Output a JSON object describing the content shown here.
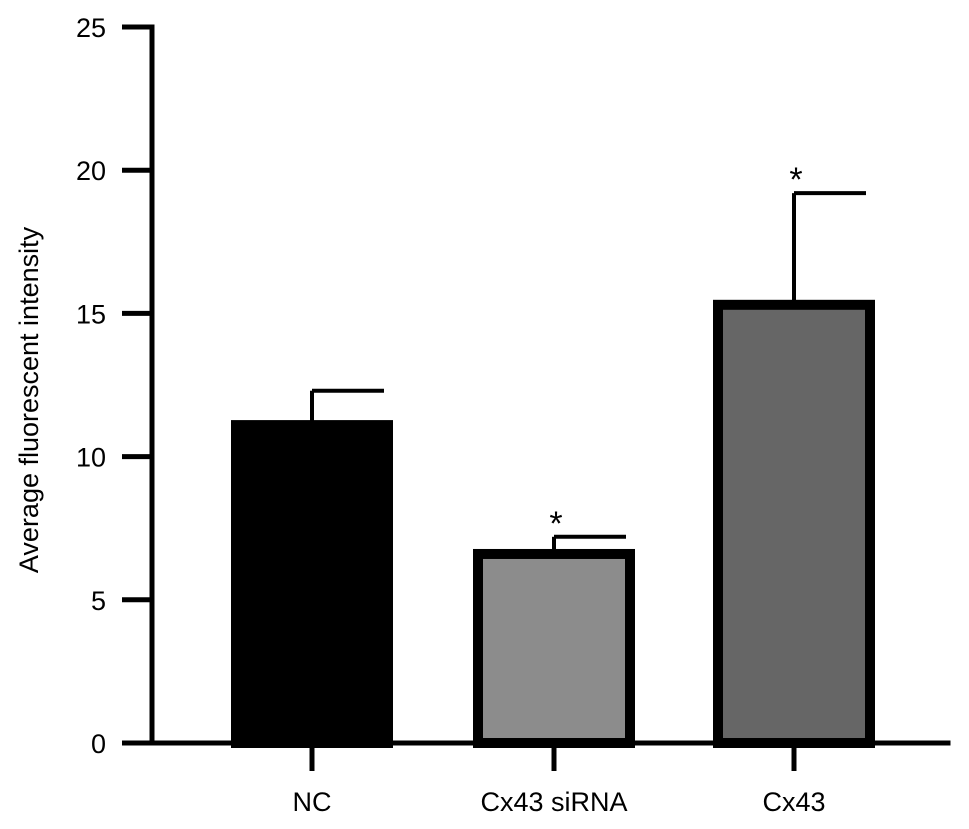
{
  "chart_data": {
    "type": "bar",
    "title": "",
    "xlabel": "",
    "ylabel": "Average fluorescent intensity",
    "ylim": [
      0,
      25
    ],
    "yticks": [
      0,
      5,
      10,
      15,
      20,
      25
    ],
    "categories": [
      "NC",
      "Cx43 siRNA",
      "Cx43"
    ],
    "values": [
      11.1,
      6.6,
      15.3
    ],
    "errors": [
      1.2,
      0.6,
      3.9
    ],
    "significance": [
      "",
      "*",
      "*"
    ],
    "colors": [
      "#000000",
      "#8c8c8c",
      "#666666"
    ],
    "grid": false,
    "legend": "none"
  }
}
